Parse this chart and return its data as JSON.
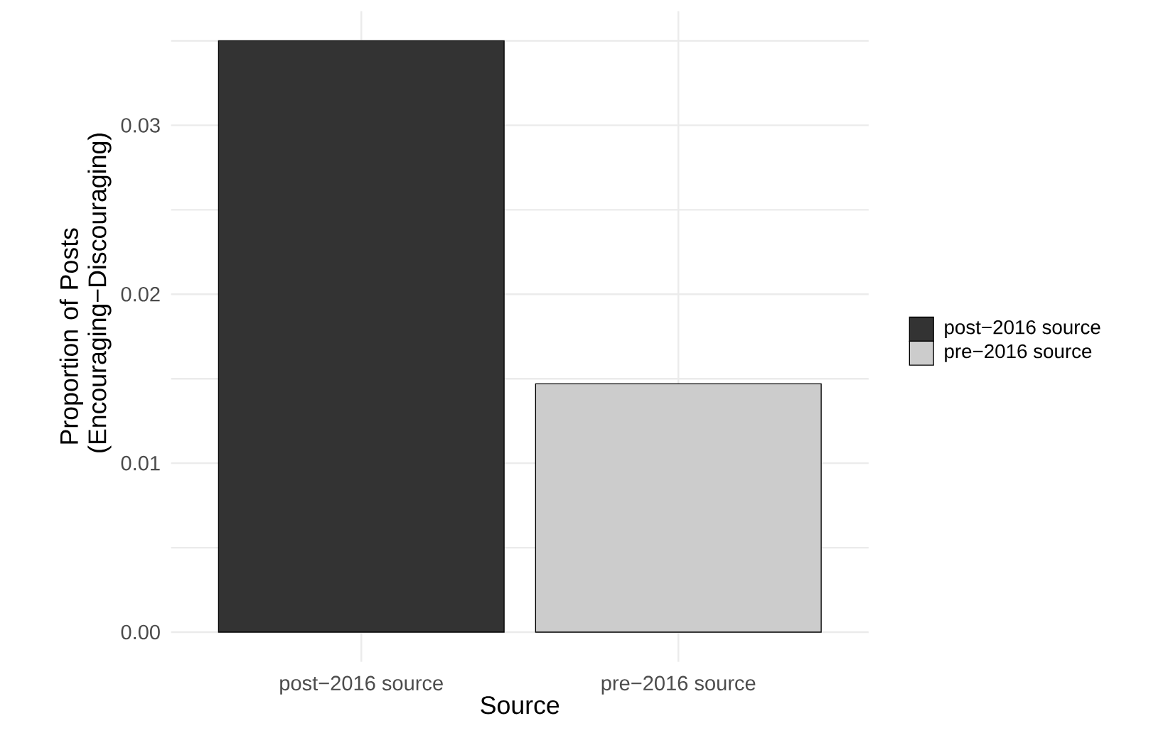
{
  "chart_data": {
    "type": "bar",
    "xlabel": "Source",
    "ylabel": "Proportion of Posts (Encouraging−Discouraging)",
    "categories": [
      "post−2016 source",
      "pre−2016 source"
    ],
    "series": [
      {
        "name": "post−2016 source",
        "color": "#333333",
        "values": [
          0.035,
          null
        ]
      },
      {
        "name": "pre−2016 source",
        "color": "#cccccc",
        "values": [
          null,
          0.0147
        ]
      }
    ],
    "ylim": [
      -0.00175,
      0.03675
    ],
    "yticks": [
      {
        "value": 0,
        "label": "0.00"
      },
      {
        "value": 0.005,
        "label": null
      },
      0.01,
      {
        "value": 0.015,
        "label": null
      },
      0.02,
      {
        "value": 0.025,
        "label": null
      },
      0.03,
      {
        "value": 0.035,
        "label": null
      }
    ],
    "grid": true,
    "legend": "right"
  }
}
